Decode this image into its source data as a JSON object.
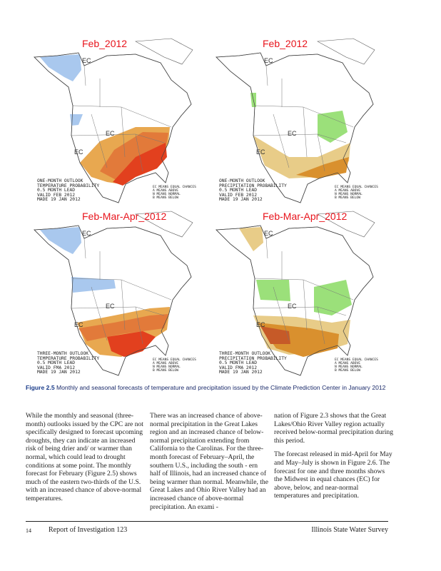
{
  "figure": {
    "maps": [
      {
        "title": "Feb_2012",
        "info": [
          "ONE-MONTH OUTLOOK",
          "TEMPERATURE PROBABILITY",
          "0.5 MONTH LEAD",
          "VALID FEB 2012",
          "MADE 19 JAN 2012"
        ],
        "ec": "EC",
        "colors": {
          "below": "#a9c8ee",
          "above1": "#e8a850",
          "above2": "#e27a3a",
          "above3": "#e2401e"
        }
      },
      {
        "title": "Feb_2012",
        "info": [
          "ONE-MONTH OUTLOOK",
          "PRECIPITATION PROBABILITY",
          "0.5 MONTH LEAD",
          "VALID FEB 2012",
          "MADE 19 JAN 2012"
        ],
        "ec": "EC",
        "colors": {
          "above": "#9be07a",
          "below1": "#e8cc88",
          "below2": "#d9902e"
        }
      },
      {
        "title": "Feb-Mar-Apr_2012",
        "info": [
          "THREE-MONTH OUTLOOK",
          "TEMPERATURE PROBABILITY",
          "0.5 MONTH LEAD",
          "VALID FMA 2012",
          "MADE 19 JAN 2012"
        ],
        "ec": "EC",
        "colors": {
          "below": "#a9c8ee",
          "above1": "#e8a850",
          "above2": "#e27a3a",
          "above3": "#e2401e"
        }
      },
      {
        "title": "Feb-Mar-Apr_2012",
        "info": [
          "THREE-MONTH OUTLOOK",
          "PRECIPITATION PROBABILITY",
          "0.5 MONTH LEAD",
          "VALID FMA 2012",
          "MADE 19 JAN 2012"
        ],
        "ec": "EC",
        "colors": {
          "above": "#9be07a",
          "below1": "#e8cc88",
          "below2": "#d9902e",
          "below3": "#c65a28"
        }
      }
    ],
    "legend": [
      "EC MEANS EQUAL CHANCES",
      "A MEANS ABOVE",
      "N MEANS NORMAL",
      "B MEANS BELOW"
    ]
  },
  "caption": {
    "label": "Figure 2.5",
    "text": " Monthly and seasonal forecasts of temperature and precipitation issued by the Climate Prediction Center in January 2012"
  },
  "columns": [
    [
      "While the monthly and seasonal (three-month) outlooks issued by the CPC are not specifically designed to forecast upcoming droughts, they can indicate an increased risk of being drier and/ or warmer than normal, which could lead to drought conditions at some point. The monthly forecast for February (Figure 2.5) shows much of the eastern two-thirds of the U.S. with an increased chance of above-normal temperatures."
    ],
    [
      "There was an increased chance of above-normal precipitation in the Great Lakes region and an increased chance of below-normal precipitation extending from California to the Carolinas. For the three-month forecast of February–April, the southern U.S., including the south - ern half of Illinois, had an increased chance of being warmer than normal. Meanwhile, the Great Lakes and Ohio River Valley had an increased chance of above-normal precipitation. An exami -"
    ],
    [
      "nation of Figure 2.3 shows that the Great Lakes/Ohio River Valley region actually received below-normal precipitation during this period.",
      "The forecast released in mid-April for May and May–July is shown in Figure 2.6. The forecast for one and three months shows the Midwest in equal chances (EC) for above, below, and near-normal temperatures and precipitation."
    ]
  ],
  "footer": {
    "page": "14",
    "report": "Report of Investigation 123",
    "org": "Illinois State Water Survey"
  }
}
